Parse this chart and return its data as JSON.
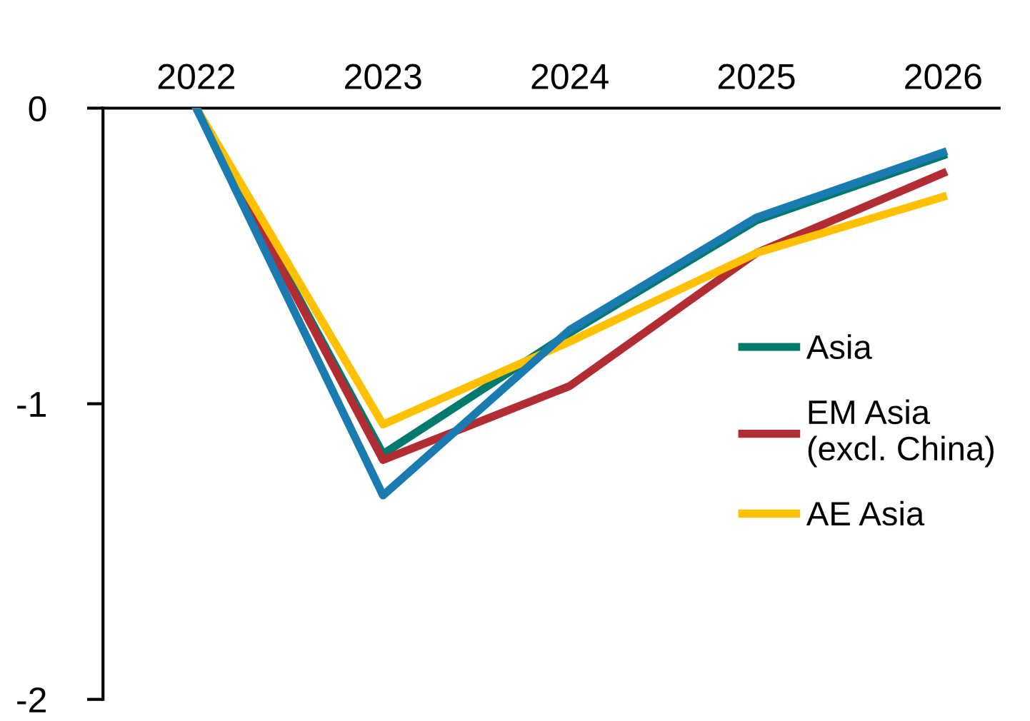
{
  "chart_data": {
    "type": "line",
    "categories": [
      "2022",
      "2023",
      "2024",
      "2025",
      "2026"
    ],
    "series": [
      {
        "name": "Asia",
        "color": "#007a6c",
        "values": [
          0,
          -1.17,
          -0.76,
          -0.38,
          -0.16
        ]
      },
      {
        "name": "EM Asia\n(excl. China)",
        "color": "#b22c33",
        "values": [
          0,
          -1.19,
          -0.94,
          -0.49,
          -0.22
        ]
      },
      {
        "name": "AE Asia",
        "color": "#ffc000",
        "values": [
          0,
          -1.07,
          -0.79,
          -0.49,
          -0.3
        ]
      },
      {
        "color": "#1a7bb0",
        "values": [
          0,
          -1.31,
          -0.75,
          -0.37,
          -0.15
        ]
      }
    ],
    "ylim": [
      -2,
      0
    ],
    "yticks": [
      {
        "value": 0,
        "label": "0"
      },
      {
        "value": -1,
        "label": "-1"
      },
      {
        "value": -2,
        "label": "-2"
      }
    ],
    "grid": false,
    "legend": "right",
    "marker": "none",
    "line_style": "solid"
  }
}
